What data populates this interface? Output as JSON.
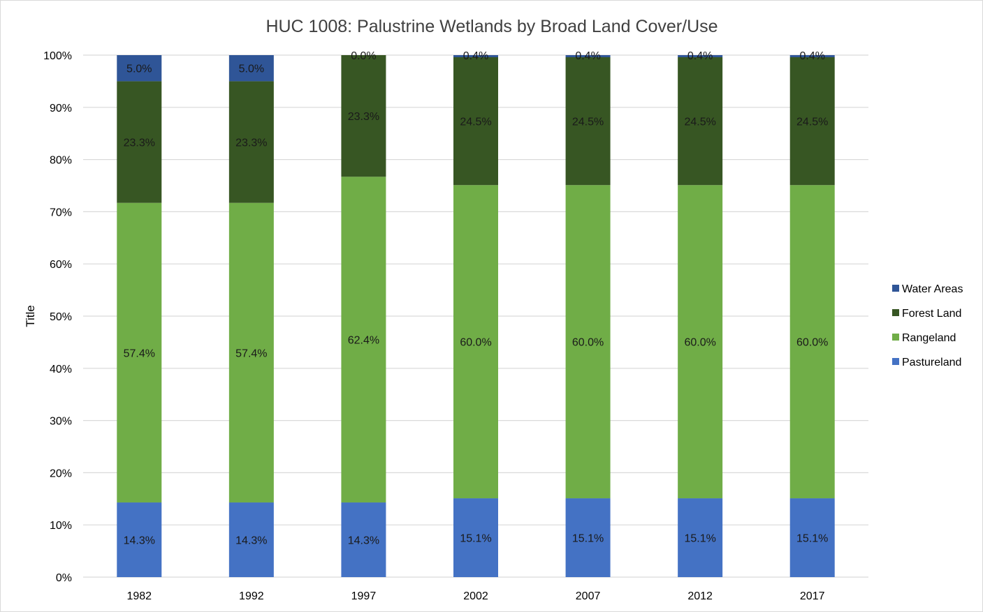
{
  "chart_data": {
    "type": "bar",
    "stacked": true,
    "title": "HUC 1008: Palustrine Wetlands by Broad Land Cover/Use",
    "ylabel": "Title",
    "xlabel": "",
    "ylim": [
      0,
      100
    ],
    "yticks": [
      "0%",
      "10%",
      "20%",
      "30%",
      "40%",
      "50%",
      "60%",
      "70%",
      "80%",
      "90%",
      "100%"
    ],
    "grid": true,
    "legend_position": "right",
    "categories": [
      "1982",
      "1992",
      "1997",
      "2002",
      "2007",
      "2012",
      "2017"
    ],
    "series": [
      {
        "name": "Pastureland",
        "color": "#4472C4",
        "values": [
          14.3,
          14.3,
          14.3,
          15.1,
          15.1,
          15.1,
          15.1
        ],
        "labels": [
          "14.3%",
          "14.3%",
          "14.3%",
          "15.1%",
          "15.1%",
          "15.1%",
          "15.1%"
        ]
      },
      {
        "name": "Rangeland",
        "color": "#70AD47",
        "values": [
          57.4,
          57.4,
          62.4,
          60.0,
          60.0,
          60.0,
          60.0
        ],
        "labels": [
          "57.4%",
          "57.4%",
          "62.4%",
          "60.0%",
          "60.0%",
          "60.0%",
          "60.0%"
        ]
      },
      {
        "name": "Forest Land",
        "color": "#375623",
        "values": [
          23.3,
          23.3,
          23.3,
          24.5,
          24.5,
          24.5,
          24.5
        ],
        "labels": [
          "23.3%",
          "23.3%",
          "23.3%",
          "24.5%",
          "24.5%",
          "24.5%",
          "24.5%"
        ]
      },
      {
        "name": "Water Areas",
        "color": "#2F5597",
        "values": [
          5.0,
          5.0,
          0.0,
          0.4,
          0.4,
          0.4,
          0.4
        ],
        "labels": [
          "5.0%",
          "5.0%",
          "0.0%",
          "0.4%",
          "0.4%",
          "0.4%",
          "0.4%"
        ]
      }
    ],
    "legend_order": [
      "Water Areas",
      "Forest Land",
      "Rangeland",
      "Pastureland"
    ],
    "gridline_color": "#d9d9d9"
  }
}
